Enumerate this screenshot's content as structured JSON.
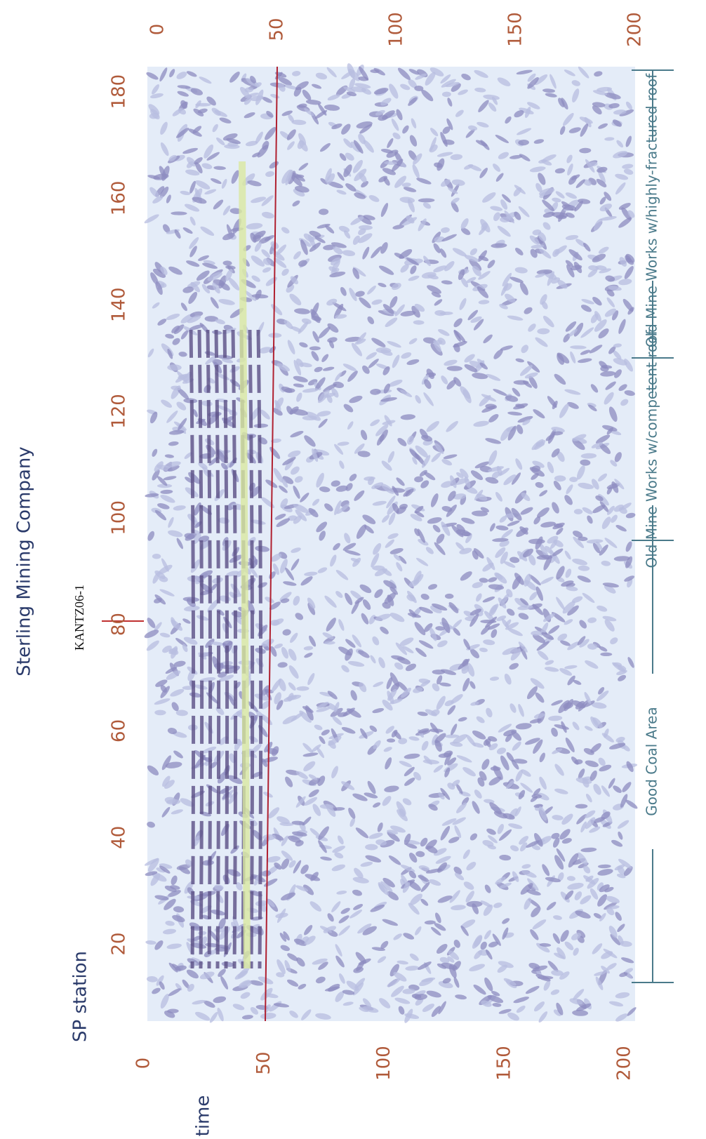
{
  "header": {
    "title": "Sterling Mining Company"
  },
  "axes": {
    "sp_label": "SP station",
    "sp_ticks": [
      20,
      40,
      60,
      80,
      100,
      120,
      140,
      160,
      180
    ],
    "time_label": "time",
    "time_ticks_top": [
      0,
      50,
      100,
      150,
      200
    ],
    "time_ticks_bottom": [
      0,
      50,
      100,
      150,
      200
    ]
  },
  "well": "KANTZ06-1",
  "annotations": [
    "Good Coal Area",
    "Old Mine Works w/competent roof",
    "Old Mine Works w/highly-fractured roof"
  ]
}
